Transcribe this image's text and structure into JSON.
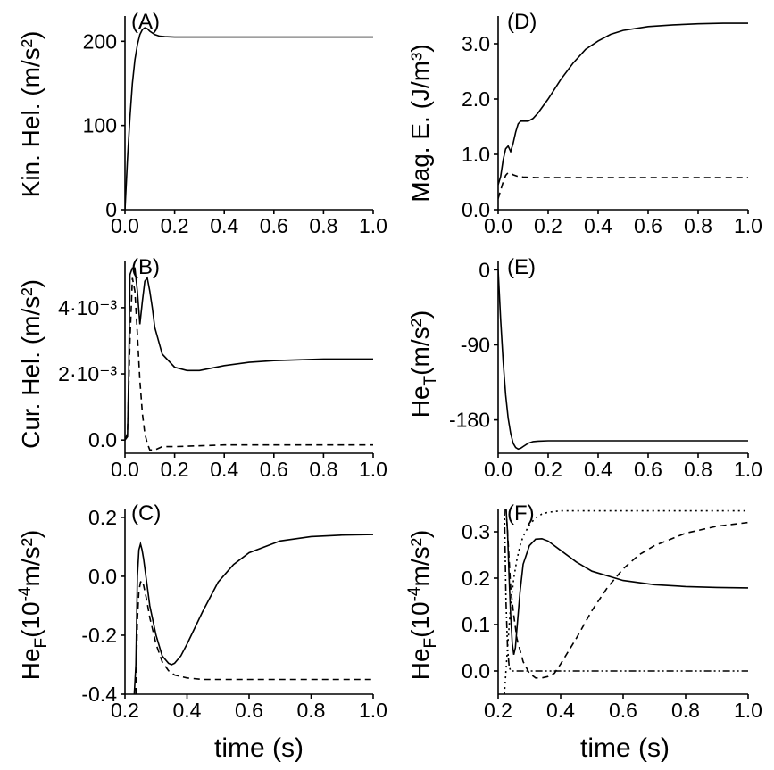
{
  "figure": {
    "xlabel_bottom": "time (s)"
  },
  "chart_data": [
    {
      "id": "A",
      "panel_label": "(A)",
      "type": "line",
      "ylabel": "Kin. Hel. (m/s²)",
      "xlim": [
        0.0,
        1.0
      ],
      "ylim": [
        0,
        230
      ],
      "xticks": [
        0.0,
        0.2,
        0.4,
        0.6,
        0.8,
        1.0
      ],
      "xtick_labels": [
        "0.0",
        "0.2",
        "0.4",
        "0.6",
        "0.8",
        "1.0"
      ],
      "yticks": [
        0,
        100,
        200
      ],
      "ytick_labels": [
        "0",
        "100",
        "200"
      ],
      "series": [
        {
          "style": "solid",
          "x": [
            0.0,
            0.01,
            0.02,
            0.03,
            0.04,
            0.05,
            0.06,
            0.07,
            0.08,
            0.09,
            0.1,
            0.12,
            0.14,
            0.16,
            0.2,
            0.3,
            0.5,
            0.7,
            1.0
          ],
          "y": [
            0,
            60,
            110,
            150,
            178,
            196,
            208,
            214,
            216,
            215,
            212,
            208,
            206,
            205.5,
            205,
            205,
            205,
            205,
            205
          ]
        }
      ]
    },
    {
      "id": "B",
      "panel_label": "(B)",
      "type": "line",
      "ylabel": "Cur. Hel. (m/s²)",
      "xlim": [
        0.0,
        1.0
      ],
      "ylim": [
        -0.0004,
        0.0054
      ],
      "xticks": [
        0.0,
        0.2,
        0.4,
        0.6,
        0.8,
        1.0
      ],
      "xtick_labels": [
        "0.0",
        "0.2",
        "0.4",
        "0.6",
        "0.8",
        "1.0"
      ],
      "yticks": [
        0.0,
        0.002,
        0.004
      ],
      "ytick_labels": [
        "0.0",
        "2·10⁻³",
        "4·10⁻³"
      ],
      "series": [
        {
          "style": "solid",
          "x": [
            0.0,
            0.01,
            0.015,
            0.02,
            0.025,
            0.03,
            0.04,
            0.05,
            0.06,
            0.07,
            0.08,
            0.09,
            0.1,
            0.11,
            0.12,
            0.15,
            0.2,
            0.25,
            0.3,
            0.4,
            0.5,
            0.6,
            0.8,
            1.0
          ],
          "y": [
            0.0,
            0.0001,
            0.002,
            0.005,
            0.0051,
            0.0052,
            0.0052,
            0.0045,
            0.0035,
            0.0042,
            0.0048,
            0.0049,
            0.0045,
            0.004,
            0.0034,
            0.0026,
            0.0022,
            0.0021,
            0.0021,
            0.00225,
            0.00235,
            0.0024,
            0.00245,
            0.00245
          ]
        },
        {
          "style": "dashed",
          "x": [
            0.0,
            0.01,
            0.02,
            0.03,
            0.04,
            0.05,
            0.06,
            0.07,
            0.08,
            0.09,
            0.1,
            0.12,
            0.15,
            0.2,
            0.4,
            0.6,
            1.0
          ],
          "y": [
            0.0,
            0.0002,
            0.003,
            0.0049,
            0.0045,
            0.0032,
            0.0018,
            0.0008,
            0.0002,
            -0.0001,
            -0.0003,
            -0.0003,
            -0.0002,
            -0.0002,
            -0.00015,
            -0.00015,
            -0.00015
          ]
        }
      ]
    },
    {
      "id": "C",
      "panel_label": "(C)",
      "type": "line",
      "ylabel": "He_F (10⁻⁴ m/s²)",
      "xlim": [
        0.2,
        1.0
      ],
      "ylim": [
        -0.4,
        0.23
      ],
      "xticks": [
        0.2,
        0.4,
        0.6,
        0.8,
        1.0
      ],
      "xtick_labels": [
        "0.2",
        "0.4",
        "0.6",
        "0.8",
        "1.0"
      ],
      "yticks": [
        -0.4,
        -0.2,
        0.0,
        0.2
      ],
      "ytick_labels": [
        "-0.4",
        "-0.2",
        "0.0",
        "0.2"
      ],
      "series": [
        {
          "style": "solid",
          "x": [
            0.23,
            0.235,
            0.24,
            0.245,
            0.25,
            0.255,
            0.26,
            0.27,
            0.28,
            0.3,
            0.32,
            0.34,
            0.35,
            0.36,
            0.38,
            0.4,
            0.45,
            0.5,
            0.55,
            0.6,
            0.7,
            0.8,
            0.9,
            1.0
          ],
          "y": [
            -0.4,
            -0.3,
            0.0,
            0.09,
            0.11,
            0.09,
            0.06,
            -0.02,
            -0.1,
            -0.2,
            -0.27,
            -0.295,
            -0.3,
            -0.295,
            -0.27,
            -0.23,
            -0.12,
            -0.02,
            0.04,
            0.08,
            0.12,
            0.135,
            0.14,
            0.142
          ]
        },
        {
          "style": "dashed",
          "x": [
            0.235,
            0.24,
            0.245,
            0.25,
            0.255,
            0.26,
            0.27,
            0.28,
            0.3,
            0.32,
            0.34,
            0.36,
            0.4,
            0.45,
            0.5,
            0.6,
            0.8,
            1.0
          ],
          "y": [
            -0.4,
            -0.15,
            -0.05,
            -0.02,
            -0.015,
            -0.03,
            -0.08,
            -0.14,
            -0.23,
            -0.29,
            -0.32,
            -0.335,
            -0.345,
            -0.35,
            -0.35,
            -0.35,
            -0.35,
            -0.35
          ]
        }
      ]
    },
    {
      "id": "D",
      "panel_label": "(D)",
      "type": "line",
      "ylabel": "Mag. E. (J/m³)",
      "xlim": [
        0.0,
        1.0
      ],
      "ylim": [
        0.0,
        3.5
      ],
      "xticks": [
        0.0,
        0.2,
        0.4,
        0.6,
        0.8,
        1.0
      ],
      "xtick_labels": [
        "0.0",
        "0.2",
        "0.4",
        "0.6",
        "0.8",
        "1.0"
      ],
      "yticks": [
        0.0,
        1.0,
        2.0,
        3.0
      ],
      "ytick_labels": [
        "0.0",
        "1.0",
        "2.0",
        "3.0"
      ],
      "series": [
        {
          "style": "solid",
          "x": [
            0.0,
            0.01,
            0.02,
            0.03,
            0.04,
            0.05,
            0.06,
            0.07,
            0.08,
            0.09,
            0.1,
            0.12,
            0.14,
            0.16,
            0.2,
            0.25,
            0.3,
            0.35,
            0.4,
            0.45,
            0.5,
            0.6,
            0.7,
            0.8,
            0.9,
            1.0
          ],
          "y": [
            0.45,
            0.6,
            0.9,
            1.1,
            1.15,
            1.05,
            1.2,
            1.4,
            1.55,
            1.6,
            1.6,
            1.6,
            1.65,
            1.75,
            2.0,
            2.35,
            2.65,
            2.9,
            3.05,
            3.17,
            3.24,
            3.31,
            3.34,
            3.36,
            3.37,
            3.37
          ]
        },
        {
          "style": "dashed",
          "x": [
            0.0,
            0.01,
            0.02,
            0.03,
            0.04,
            0.05,
            0.06,
            0.08,
            0.1,
            0.15,
            0.2,
            0.4,
            0.6,
            1.0
          ],
          "y": [
            0.2,
            0.35,
            0.5,
            0.62,
            0.67,
            0.66,
            0.63,
            0.6,
            0.59,
            0.58,
            0.58,
            0.58,
            0.58,
            0.58
          ]
        }
      ]
    },
    {
      "id": "E",
      "panel_label": "(E)",
      "type": "line",
      "ylabel": "He_T (m/s²)",
      "xlim": [
        0.0,
        1.0
      ],
      "ylim": [
        -220,
        10
      ],
      "xticks": [
        0.0,
        0.2,
        0.4,
        0.6,
        0.8,
        1.0
      ],
      "xtick_labels": [
        "0.0",
        "0.2",
        "0.4",
        "0.6",
        "0.8",
        "1.0"
      ],
      "yticks": [
        -180,
        -90,
        0
      ],
      "ytick_labels": [
        "-180",
        "-90",
        "0"
      ],
      "series": [
        {
          "style": "solid",
          "x": [
            0.0,
            0.01,
            0.02,
            0.03,
            0.04,
            0.05,
            0.06,
            0.07,
            0.08,
            0.09,
            0.1,
            0.12,
            0.14,
            0.16,
            0.2,
            0.3,
            0.5,
            0.7,
            1.0
          ],
          "y": [
            0,
            -60,
            -110,
            -150,
            -178,
            -196,
            -208,
            -213,
            -215,
            -214,
            -212,
            -208,
            -206,
            -205.5,
            -205,
            -205,
            -205,
            -205,
            -205
          ]
        }
      ]
    },
    {
      "id": "F",
      "panel_label": "(F)",
      "type": "line",
      "ylabel": "He_F (10⁻⁴ m/s²)",
      "xlim": [
        0.2,
        1.0
      ],
      "ylim": [
        -0.05,
        0.35
      ],
      "xticks": [
        0.2,
        0.4,
        0.6,
        0.8,
        1.0
      ],
      "xtick_labels": [
        "0.2",
        "0.4",
        "0.6",
        "0.8",
        "1.0"
      ],
      "yticks": [
        0.0,
        0.1,
        0.2,
        0.3
      ],
      "ytick_labels": [
        "0.0",
        "0.1",
        "0.2",
        "0.3"
      ],
      "series": [
        {
          "style": "solid",
          "x": [
            0.225,
            0.23,
            0.235,
            0.24,
            0.245,
            0.25,
            0.255,
            0.26,
            0.27,
            0.28,
            0.3,
            0.32,
            0.34,
            0.36,
            0.4,
            0.45,
            0.5,
            0.6,
            0.7,
            0.8,
            0.9,
            1.0
          ],
          "y": [
            0.35,
            0.3,
            0.2,
            0.12,
            0.06,
            0.035,
            0.05,
            0.09,
            0.17,
            0.23,
            0.27,
            0.284,
            0.285,
            0.28,
            0.26,
            0.235,
            0.215,
            0.195,
            0.186,
            0.182,
            0.18,
            0.179
          ]
        },
        {
          "style": "dashed",
          "x": [
            0.225,
            0.23,
            0.235,
            0.24,
            0.25,
            0.26,
            0.28,
            0.3,
            0.32,
            0.34,
            0.36,
            0.38,
            0.4,
            0.45,
            0.5,
            0.55,
            0.6,
            0.65,
            0.7,
            0.8,
            0.9,
            1.0
          ],
          "y": [
            0.35,
            0.3,
            0.24,
            0.18,
            0.12,
            0.07,
            0.02,
            -0.005,
            -0.015,
            -0.015,
            -0.012,
            -0.005,
            0.015,
            0.07,
            0.13,
            0.18,
            0.22,
            0.25,
            0.27,
            0.297,
            0.312,
            0.32
          ]
        },
        {
          "style": "dotted",
          "x": [
            0.22,
            0.23,
            0.24,
            0.25,
            0.26,
            0.27,
            0.28,
            0.3,
            0.32,
            0.34,
            0.36,
            0.4,
            0.5,
            0.6,
            0.8,
            1.0
          ],
          "y": [
            -0.05,
            0.05,
            0.14,
            0.2,
            0.24,
            0.27,
            0.29,
            0.315,
            0.33,
            0.338,
            0.342,
            0.345,
            0.345,
            0.345,
            0.345,
            0.345
          ]
        },
        {
          "style": "dashdotdot",
          "x": [
            0.22,
            0.225,
            0.23,
            0.235,
            0.24,
            0.25,
            0.26,
            0.3,
            0.4,
            0.6,
            0.8,
            1.0
          ],
          "y": [
            0.35,
            0.15,
            0.05,
            0.01,
            0.0,
            0.0,
            0.0,
            0.0,
            0.0,
            0.0,
            0.0,
            0.0
          ]
        }
      ]
    }
  ]
}
